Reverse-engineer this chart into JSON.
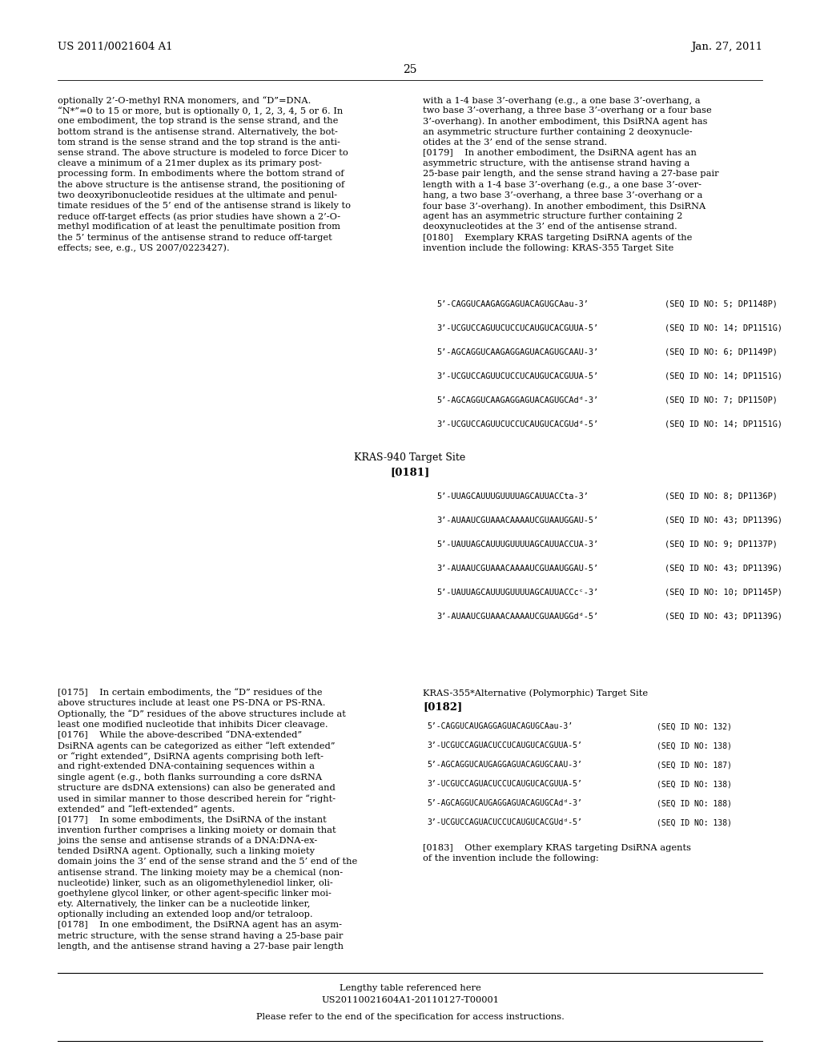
{
  "page_number": "25",
  "header_left": "US 2011/0021604 A1",
  "header_right": "Jan. 27, 2011",
  "background_color": "#ffffff",
  "left_col1_lines": [
    "optionally 2’-O-methyl RNA monomers, and “D”=DNA.",
    "“N*”=0 to 15 or more, but is optionally 0, 1, 2, 3, 4, 5 or 6. In",
    "one embodiment, the top strand is the sense strand, and the",
    "bottom strand is the antisense strand. Alternatively, the bot-",
    "tom strand is the sense strand and the top strand is the anti-",
    "sense strand. The above structure is modeled to force Dicer to",
    "cleave a minimum of a 21mer duplex as its primary post-",
    "processing form. In embodiments where the bottom strand of",
    "the above structure is the antisense strand, the positioning of",
    "two deoxyribonucleotide residues at the ultimate and penul-",
    "timate residues of the 5’ end of the antisense strand is likely to",
    "reduce off-target effects (as prior studies have shown a 2’-O-",
    "methyl modification of at least the penultimate position from",
    "the 5’ terminus of the antisense strand to reduce off-target",
    "effects; see, e.g., US 2007/0223427)."
  ],
  "right_col1_lines": [
    "with a 1-4 base 3’-overhang (e.g., a one base 3’-overhang, a",
    "two base 3’-overhang, a three base 3’-overhang or a four base",
    "3’-overhang). In another embodiment, this DsiRNA agent has",
    "an asymmetric structure further containing 2 deoxynucle-",
    "otides at the 3’ end of the sense strand.",
    "[0179]    In another embodiment, the DsiRNA agent has an",
    "asymmetric structure, with the antisense strand having a",
    "25-base pair length, and the sense strand having a 27-base pair",
    "length with a 1-4 base 3’-overhang (e.g., a one base 3’-over-",
    "hang, a two base 3’-overhang, a three base 3’-overhang or a",
    "four base 3’-overhang). In another embodiment, this DsiRNA",
    "agent has an asymmetric structure further containing 2",
    "deoxynucleotides at the 3’ end of the antisense strand.",
    "[0180]    Exemplary KRAS targeting DsiRNA agents of the",
    "invention include the following: KRAS-355 Target Site"
  ],
  "kras355_seqs": [
    [
      "5’-CAGGUCAAGAGGAGUACAGUGCAau-3’",
      "(SEQ ID NO: 5; DP1148P)"
    ],
    [
      "3’-UCGUCCAGUUCUCCUCAUGUCACGUUA-5’",
      "(SEQ ID NO: 14; DP1151G)"
    ],
    [
      "5’-AGCAGGUCAAGAGGAGUACAGUGCAAU-3’",
      "(SEQ ID NO: 6; DP1149P)"
    ],
    [
      "3’-UCGUCCAGUUCUCCUCAUGUCACGUUA-5’",
      "(SEQ ID NO: 14; DP1151G)"
    ],
    [
      "5’-AGCAGGUCAAGAGGAGUACAGUGCAd/d/-3’",
      "(SEQ ID NO: 7; DP1150P)"
    ],
    [
      "3’-UCGUCCAGUUCUCCUCAUGUCACGUd/d/-5’",
      "(SEQ ID NO: 14; DP1151G)"
    ]
  ],
  "kras940_title": "KRAS-940 Target Site",
  "kras940_para": "[0181]",
  "kras940_seqs": [
    [
      "5’-UUAGCAUUUGUUUUAGCAUUACCta-3’",
      "(SEQ ID NO: 8; DP1136P)"
    ],
    [
      "3’-AUAAUCGUAAACAAAAUCGUAAUGGAU-5’",
      "(SEQ ID NO: 43; DP1139G)"
    ],
    [
      "5’-UAUUAGCAUUUGUUUUAGCAUUACCUA-3’",
      "(SEQ ID NO: 9; DP1137P)"
    ],
    [
      "3’-AUAAUCGUAAACAAAAUCGUAAUGGAU-5’",
      "(SEQ ID NO: 43; DP1139G)"
    ],
    [
      "5’-UAUUAGCAUUUGUUUUAGCAUUACCc/C/-3’",
      "(SEQ ID NO: 10; DP1145P)"
    ],
    [
      "3’-AUAAUCGUAAACAAAAUCGUAAUGGd/d/-5’",
      "(SEQ ID NO: 43; DP1139G)"
    ]
  ],
  "left_col2_lines": [
    "[0175]    In certain embodiments, the “D” residues of the",
    "above structures include at least one PS-DNA or PS-RNA.",
    "Optionally, the “D” residues of the above structures include at",
    "least one modified nucleotide that inhibits Dicer cleavage.",
    "[0176]    While the above-described “DNA-extended”",
    "DsiRNA agents can be categorized as either “left extended”",
    "or “right extended”, DsiRNA agents comprising both left-",
    "and right-extended DNA-containing sequences within a",
    "single agent (e.g., both flanks surrounding a core dsRNA",
    "structure are dsDNA extensions) can also be generated and",
    "used in similar manner to those described herein for “right-",
    "extended” and “left-extended” agents.",
    "[0177]    In some embodiments, the DsiRNA of the instant",
    "invention further comprises a linking moiety or domain that",
    "joins the sense and antisense strands of a DNA:DNA-ex-",
    "tended DsiRNA agent. Optionally, such a linking moiety",
    "domain joins the 3’ end of the sense strand and the 5’ end of the",
    "antisense strand. The linking moiety may be a chemical (non-",
    "nucleotide) linker, such as an oligomethylenediol linker, oli-",
    "goethylene glycol linker, or other agent-specific linker moi-",
    "ety. Alternatively, the linker can be a nucleotide linker,",
    "optionally including an extended loop and/or tetraloop.",
    "[0178]    In one embodiment, the DsiRNA agent has an asym-",
    "metric structure, with the sense strand having a 25-base pair",
    "length, and the antisense strand having a 27-base pair length"
  ],
  "kras355alt_title": "KRAS-355*Alternative (Polymorphic) Target Site",
  "kras355alt_para": "[0182]",
  "kras355alt_seqs": [
    [
      "5’-CAGGUCAUGAGGAGUACAGUGCAau-3’",
      "(SEQ ID NO: 132)"
    ],
    [
      "3’-UCGUCCAGUACUCCUCAUGUCACGUUA-5’",
      "(SEQ ID NO: 138)"
    ],
    [
      "5’-AGCAGGUCAUGAGGAGUACAGUGCAAU-3’",
      "(SEQ ID NO: 187)"
    ],
    [
      "3’-UCGUCCAGUACUCCUCAUGUCACGUUA-5’",
      "(SEQ ID NO: 138)"
    ],
    [
      "5’-AGCAGGUCAUGAGGAGUACAGUGCAd/d/-3’",
      "(SEQ ID NO: 188)"
    ],
    [
      "3’-UCGUCCAGUACUCCUCAUGUCACGUd/d/-5’",
      "(SEQ ID NO: 138)"
    ]
  ],
  "para_0183_line1": "[0183]    Other exemplary KRAS targeting DsiRNA agents",
  "para_0183_line2": "of the invention include the following:",
  "table_note": "Lengthy table referenced here",
  "table_ref": "US20110021604A1-20110127-T00001",
  "table_access": "Please refer to the end of the specification for access instructions."
}
